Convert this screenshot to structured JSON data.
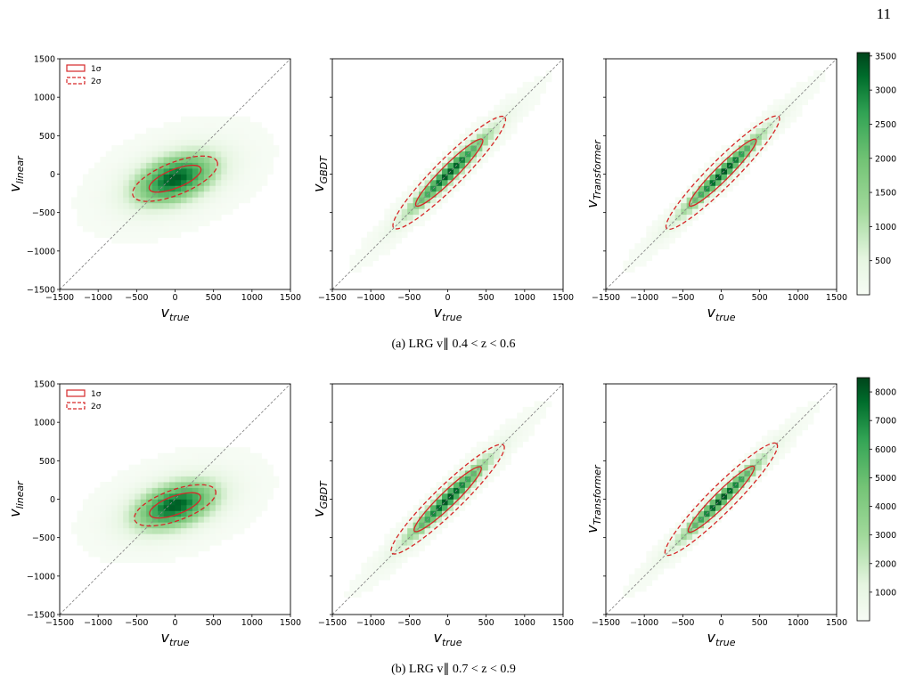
{
  "page_number": "11",
  "captions": {
    "a": "(a) LRG v∥ 0.4 < z < 0.6",
    "b": "(b) LRG v∥ 0.7 < z < 0.9"
  },
  "legend": {
    "sigma1": "1σ",
    "sigma2": "2σ"
  },
  "colors": {
    "ellipse": "#d62728",
    "diagonal": "#888888",
    "cmap_low": "#f7fcf5",
    "cmap_high": "#00441b"
  },
  "chart_data": [
    {
      "type": "heatmap",
      "panel": "a1",
      "xlabel": "v_true",
      "ylabel": "v_linear",
      "xlim": [
        -1500,
        1500
      ],
      "ylim": [
        -1500,
        1500
      ],
      "xticks": [
        -1500,
        -1000,
        -500,
        0,
        500,
        1000,
        1500
      ],
      "yticks": [
        -1500,
        -1000,
        -500,
        0,
        500,
        1000,
        1500
      ],
      "slope": 0.26,
      "scatter": 200,
      "center": [
        0,
        -60
      ],
      "ellipse_1sigma": {
        "center": [
          0,
          -60
        ],
        "angle_deg": 22,
        "semi_axes": [
          360,
          120
        ]
      },
      "ellipse_2sigma": {
        "center": [
          0,
          -60
        ],
        "angle_deg": 22,
        "semi_axes": [
          590,
          210
        ]
      }
    },
    {
      "type": "heatmap",
      "panel": "a2",
      "xlabel": "v_true",
      "ylabel": "v_GBDT",
      "xlim": [
        -1500,
        1500
      ],
      "ylim": [
        -1500,
        1500
      ],
      "xticks": [
        -1500,
        -1000,
        -500,
        0,
        500,
        1000,
        1500
      ],
      "slope": 0.95,
      "scatter": 90,
      "center": [
        20,
        20
      ],
      "ellipse_1sigma": {
        "center": [
          20,
          20
        ],
        "angle_deg": 45,
        "semi_axes": [
          610,
          100
        ]
      },
      "ellipse_2sigma": {
        "center": [
          20,
          20
        ],
        "angle_deg": 45,
        "semi_axes": [
          1020,
          180
        ]
      }
    },
    {
      "type": "heatmap",
      "panel": "a3",
      "xlabel": "v_true",
      "ylabel": "v_Transformer",
      "xlim": [
        -1500,
        1500
      ],
      "ylim": [
        -1500,
        1500
      ],
      "xticks": [
        -1500,
        -1000,
        -500,
        0,
        500,
        1000,
        1500
      ],
      "slope": 0.97,
      "scatter": 80,
      "center": [
        20,
        20
      ],
      "ellipse_1sigma": {
        "center": [
          20,
          20
        ],
        "angle_deg": 45,
        "semi_axes": [
          610,
          95
        ]
      },
      "ellipse_2sigma": {
        "center": [
          20,
          20
        ],
        "angle_deg": 45,
        "semi_axes": [
          1030,
          170
        ]
      }
    },
    {
      "type": "colorbar",
      "panel": "a-cbar",
      "min": 0,
      "max": 3550,
      "ticks": [
        500,
        1000,
        1500,
        2000,
        2500,
        3000,
        3500
      ]
    },
    {
      "type": "heatmap",
      "panel": "b1",
      "xlabel": "v_true",
      "ylabel": "v_linear",
      "xlim": [
        -1500,
        1500
      ],
      "ylim": [
        -1500,
        1500
      ],
      "xticks": [
        -1500,
        -1000,
        -500,
        0,
        500,
        1000,
        1500
      ],
      "yticks": [
        -1500,
        -1000,
        -500,
        0,
        500,
        1000,
        1500
      ],
      "slope": 0.24,
      "scatter": 190,
      "center": [
        0,
        -80
      ],
      "ellipse_1sigma": {
        "center": [
          0,
          -80
        ],
        "angle_deg": 20,
        "semi_axes": [
          350,
          120
        ]
      },
      "ellipse_2sigma": {
        "center": [
          0,
          -80
        ],
        "angle_deg": 20,
        "semi_axes": [
          560,
          200
        ]
      }
    },
    {
      "type": "heatmap",
      "panel": "b2",
      "xlabel": "v_true",
      "ylabel": "v_GBDT",
      "xlim": [
        -1500,
        1500
      ],
      "ylim": [
        -1500,
        1500
      ],
      "xticks": [
        -1500,
        -1000,
        -500,
        0,
        500,
        1000,
        1500
      ],
      "slope": 0.95,
      "scatter": 90,
      "center": [
        0,
        0
      ],
      "ellipse_1sigma": {
        "center": [
          0,
          0
        ],
        "angle_deg": 44,
        "semi_axes": [
          600,
          100
        ]
      },
      "ellipse_2sigma": {
        "center": [
          0,
          0
        ],
        "angle_deg": 44,
        "semi_axes": [
          1010,
          175
        ]
      }
    },
    {
      "type": "heatmap",
      "panel": "b3",
      "xlabel": "v_true",
      "ylabel": "v_Transformer",
      "xlim": [
        -1500,
        1500
      ],
      "ylim": [
        -1500,
        1500
      ],
      "xticks": [
        -1500,
        -1000,
        -500,
        0,
        500,
        1000,
        1500
      ],
      "slope": 0.97,
      "scatter": 75,
      "center": [
        0,
        0
      ],
      "ellipse_1sigma": {
        "center": [
          0,
          0
        ],
        "angle_deg": 45,
        "semi_axes": [
          600,
          95
        ]
      },
      "ellipse_2sigma": {
        "center": [
          0,
          0
        ],
        "angle_deg": 45,
        "semi_axes": [
          1020,
          170
        ]
      }
    },
    {
      "type": "colorbar",
      "panel": "b-cbar",
      "min": 0,
      "max": 8500,
      "ticks": [
        1000,
        2000,
        3000,
        4000,
        5000,
        6000,
        7000,
        8000
      ]
    }
  ]
}
